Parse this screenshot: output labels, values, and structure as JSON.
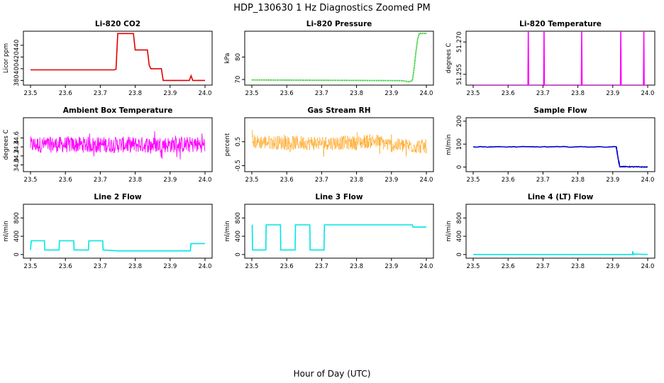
{
  "page": {
    "title": "HDP_130630  1 Hz Diagnostics Zoomed PM",
    "xlabel": "Hour of Day (UTC)"
  },
  "chart_data": [
    {
      "type": "line",
      "title": "Li-820 CO2",
      "ylabel": "Licor ppm",
      "color": "#e00000",
      "style": "line",
      "x_ticks": [
        "23.5",
        "23.6",
        "23.7",
        "23.8",
        "23.9",
        "24.0"
      ],
      "y_ticks": [
        "380",
        "400",
        "420",
        "440"
      ],
      "xlim": [
        23.5,
        24.0
      ],
      "ylim": [
        372,
        464
      ],
      "x": [
        23.5,
        23.74,
        23.745,
        23.75,
        23.795,
        23.8,
        23.835,
        23.84,
        23.845,
        23.875,
        23.88,
        23.955,
        23.96,
        23.965,
        24.0
      ],
      "y": [
        398,
        398,
        399,
        460,
        460,
        432,
        432,
        406,
        400,
        400,
        380,
        380,
        388,
        380,
        380
      ]
    },
    {
      "type": "line",
      "title": "Li-820 Pressure",
      "ylabel": "kPa",
      "color": "#00c000",
      "style": "dots",
      "x_ticks": [
        "23.5",
        "23.6",
        "23.7",
        "23.8",
        "23.9",
        "24.0"
      ],
      "y_ticks": [
        "70",
        "80"
      ],
      "xlim": [
        23.5,
        24.0
      ],
      "ylim": [
        67.5,
        91.5
      ],
      "x": [
        23.5,
        23.8,
        23.93,
        23.95,
        23.96,
        23.965,
        23.97,
        23.975,
        23.98,
        24.0
      ],
      "y": [
        69.8,
        69.6,
        69.5,
        69.0,
        69.5,
        75,
        82,
        88,
        90.5,
        90.5
      ]
    },
    {
      "type": "line",
      "title": "Li-820 Temperature",
      "ylabel": "degrees C",
      "color": "#ff00ff",
      "style": "line",
      "x_ticks": [
        "23.5",
        "23.6",
        "23.7",
        "23.8",
        "23.9",
        "24.0"
      ],
      "y_ticks": [
        "51.255",
        "51.270"
      ],
      "xlim": [
        23.5,
        24.0
      ],
      "ylim": [
        51.25,
        51.275
      ],
      "x": [
        23.5,
        23.657,
        23.658,
        23.659,
        23.702,
        23.703,
        23.704,
        23.81,
        23.811,
        23.812,
        23.922,
        23.923,
        23.924,
        23.988,
        23.989,
        23.99,
        24.0
      ],
      "y": [
        51.25,
        51.25,
        51.275,
        51.25,
        51.25,
        51.275,
        51.25,
        51.25,
        51.275,
        51.25,
        51.25,
        51.275,
        51.25,
        51.25,
        51.275,
        51.25,
        51.25
      ]
    },
    {
      "type": "line",
      "title": "Ambient Box Temperature",
      "ylabel": "degrees C",
      "color": "#ff00ff",
      "style": "noise",
      "x_ticks": [
        "23.5",
        "23.6",
        "23.7",
        "23.8",
        "23.9",
        "24.0"
      ],
      "y_ticks": [
        "34.0",
        "34.2",
        "34.4",
        "34.6"
      ],
      "xlim": [
        23.5,
        24.0
      ],
      "ylim": [
        33.85,
        35.05
      ],
      "x": [
        23.5,
        24.0
      ],
      "y": [
        34.45,
        34.45
      ],
      "noise": 0.18
    },
    {
      "type": "line",
      "title": "Gas Stream RH",
      "ylabel": "percent",
      "color": "#ff9900",
      "style": "noise",
      "x_ticks": [
        "23.5",
        "23.6",
        "23.7",
        "23.8",
        "23.9",
        "24.0"
      ],
      "y_ticks": [
        "-0.5",
        "0.5"
      ],
      "xlim": [
        23.5,
        24.0
      ],
      "ylim": [
        -0.75,
        1.5
      ],
      "x": [
        23.5,
        23.6,
        23.7,
        23.8,
        23.85,
        23.9,
        24.0
      ],
      "y": [
        0.5,
        0.45,
        0.45,
        0.45,
        0.55,
        0.35,
        0.3
      ],
      "noise": 0.3
    },
    {
      "type": "line",
      "title": "Sample Flow",
      "ylabel": "ml/min",
      "color": "#0000cc",
      "style": "line",
      "x_ticks": [
        "23.5",
        "23.6",
        "23.7",
        "23.8",
        "23.9",
        "24.0"
      ],
      "y_ticks": [
        "0",
        "100",
        "200"
      ],
      "xlim": [
        23.5,
        24.0
      ],
      "ylim": [
        -20,
        215
      ],
      "x": [
        23.5,
        23.91,
        23.915,
        23.92,
        24.0
      ],
      "y": [
        88,
        88,
        40,
        2,
        0
      ],
      "noise": 1.5
    },
    {
      "type": "line",
      "title": "Line 2 Flow",
      "ylabel": "ml/min",
      "color": "#00e5e5",
      "style": "line",
      "x_ticks": [
        "23.5",
        "23.6",
        "23.7",
        "23.8",
        "23.9",
        "24.0"
      ],
      "y_ticks": [
        "0",
        "400",
        "800"
      ],
      "xlim": [
        23.5,
        24.0
      ],
      "ylim": [
        -80,
        1100
      ],
      "x": [
        23.5,
        23.502,
        23.54,
        23.541,
        23.582,
        23.583,
        23.624,
        23.625,
        23.666,
        23.667,
        23.707,
        23.708,
        23.75,
        23.958,
        23.96,
        24.0
      ],
      "y": [
        100,
        300,
        300,
        100,
        100,
        300,
        300,
        100,
        100,
        300,
        300,
        100,
        80,
        80,
        240,
        240
      ]
    },
    {
      "type": "line",
      "title": "Line 3 Flow",
      "ylabel": "ml/min",
      "color": "#00e5e5",
      "style": "line",
      "x_ticks": [
        "23.5",
        "23.6",
        "23.7",
        "23.8",
        "23.9",
        "24.0"
      ],
      "y_ticks": [
        "0",
        "400",
        "800"
      ],
      "xlim": [
        23.5,
        24.0
      ],
      "ylim": [
        -80,
        1100
      ],
      "x": [
        23.5,
        23.501,
        23.502,
        23.54,
        23.541,
        23.582,
        23.583,
        23.624,
        23.625,
        23.666,
        23.667,
        23.707,
        23.708,
        23.96,
        23.962,
        24.0
      ],
      "y": [
        640,
        640,
        100,
        100,
        650,
        650,
        100,
        100,
        650,
        650,
        100,
        100,
        650,
        650,
        600,
        600
      ]
    },
    {
      "type": "line",
      "title": "Line 4 (LT) Flow",
      "ylabel": "ml/min",
      "color": "#00e5e5",
      "style": "line",
      "x_ticks": [
        "23.5",
        "23.6",
        "23.7",
        "23.8",
        "23.9",
        "24.0"
      ],
      "y_ticks": [
        "0",
        "400",
        "800"
      ],
      "xlim": [
        23.5,
        24.0
      ],
      "ylim": [
        -80,
        1100
      ],
      "x": [
        23.5,
        23.956,
        23.957,
        23.958,
        23.959,
        23.962,
        23.963,
        24.0
      ],
      "y": [
        0,
        0,
        60,
        60,
        0,
        0,
        10,
        0
      ]
    }
  ]
}
